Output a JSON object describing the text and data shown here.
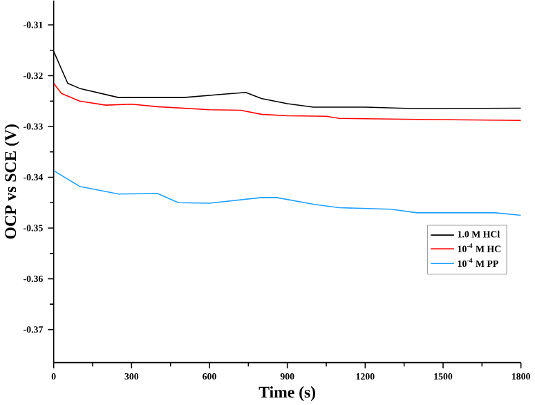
{
  "chart_data": {
    "type": "line",
    "xlabel": "Time (s)",
    "ylabel": "OCP vs SCE (V)",
    "xlim": [
      0,
      1800
    ],
    "xticks": [
      0,
      300,
      600,
      900,
      1200,
      1500,
      1800
    ],
    "ylim": [
      -0.3765,
      -0.3052
    ],
    "yticks": [
      -0.37,
      -0.36,
      -0.35,
      -0.34,
      -0.33,
      -0.32,
      -0.31
    ],
    "grid": false,
    "legend": "right",
    "marker": "none",
    "line_style": "solid",
    "series": [
      {
        "name": "1.0 M HCl",
        "color": "#000000",
        "x": [
          0,
          54,
          100,
          250,
          500,
          639,
          740,
          800,
          900,
          1000,
          1200,
          1400,
          1800
        ],
        "values": [
          -0.3152,
          -0.3215,
          -0.3225,
          -0.3243,
          -0.3243,
          -0.3237,
          -0.3233,
          -0.3245,
          -0.3255,
          -0.3262,
          -0.3262,
          -0.3265,
          -0.3264
        ]
      },
      {
        "name": "10$^{-4}$ M HC",
        "color": "#ff0000",
        "x": [
          0,
          30,
          100,
          200,
          300,
          400,
          600,
          720,
          800,
          900,
          1050,
          1100,
          1400,
          1800
        ],
        "values": [
          -0.3215,
          -0.3235,
          -0.325,
          -0.3258,
          -0.3256,
          -0.3261,
          -0.3267,
          -0.3268,
          -0.3276,
          -0.3279,
          -0.328,
          -0.3284,
          -0.3286,
          -0.3288
        ]
      },
      {
        "name": "10$^{-4}$ M PP",
        "color": "#1ea0ff",
        "x": [
          0,
          100,
          250,
          400,
          480,
          600,
          800,
          860,
          1000,
          1100,
          1300,
          1400,
          1700,
          1800
        ],
        "values": [
          -0.3387,
          -0.3418,
          -0.3433,
          -0.3432,
          -0.345,
          -0.3451,
          -0.344,
          -0.344,
          -0.3453,
          -0.346,
          -0.3463,
          -0.347,
          -0.347,
          -0.3475
        ]
      }
    ]
  }
}
